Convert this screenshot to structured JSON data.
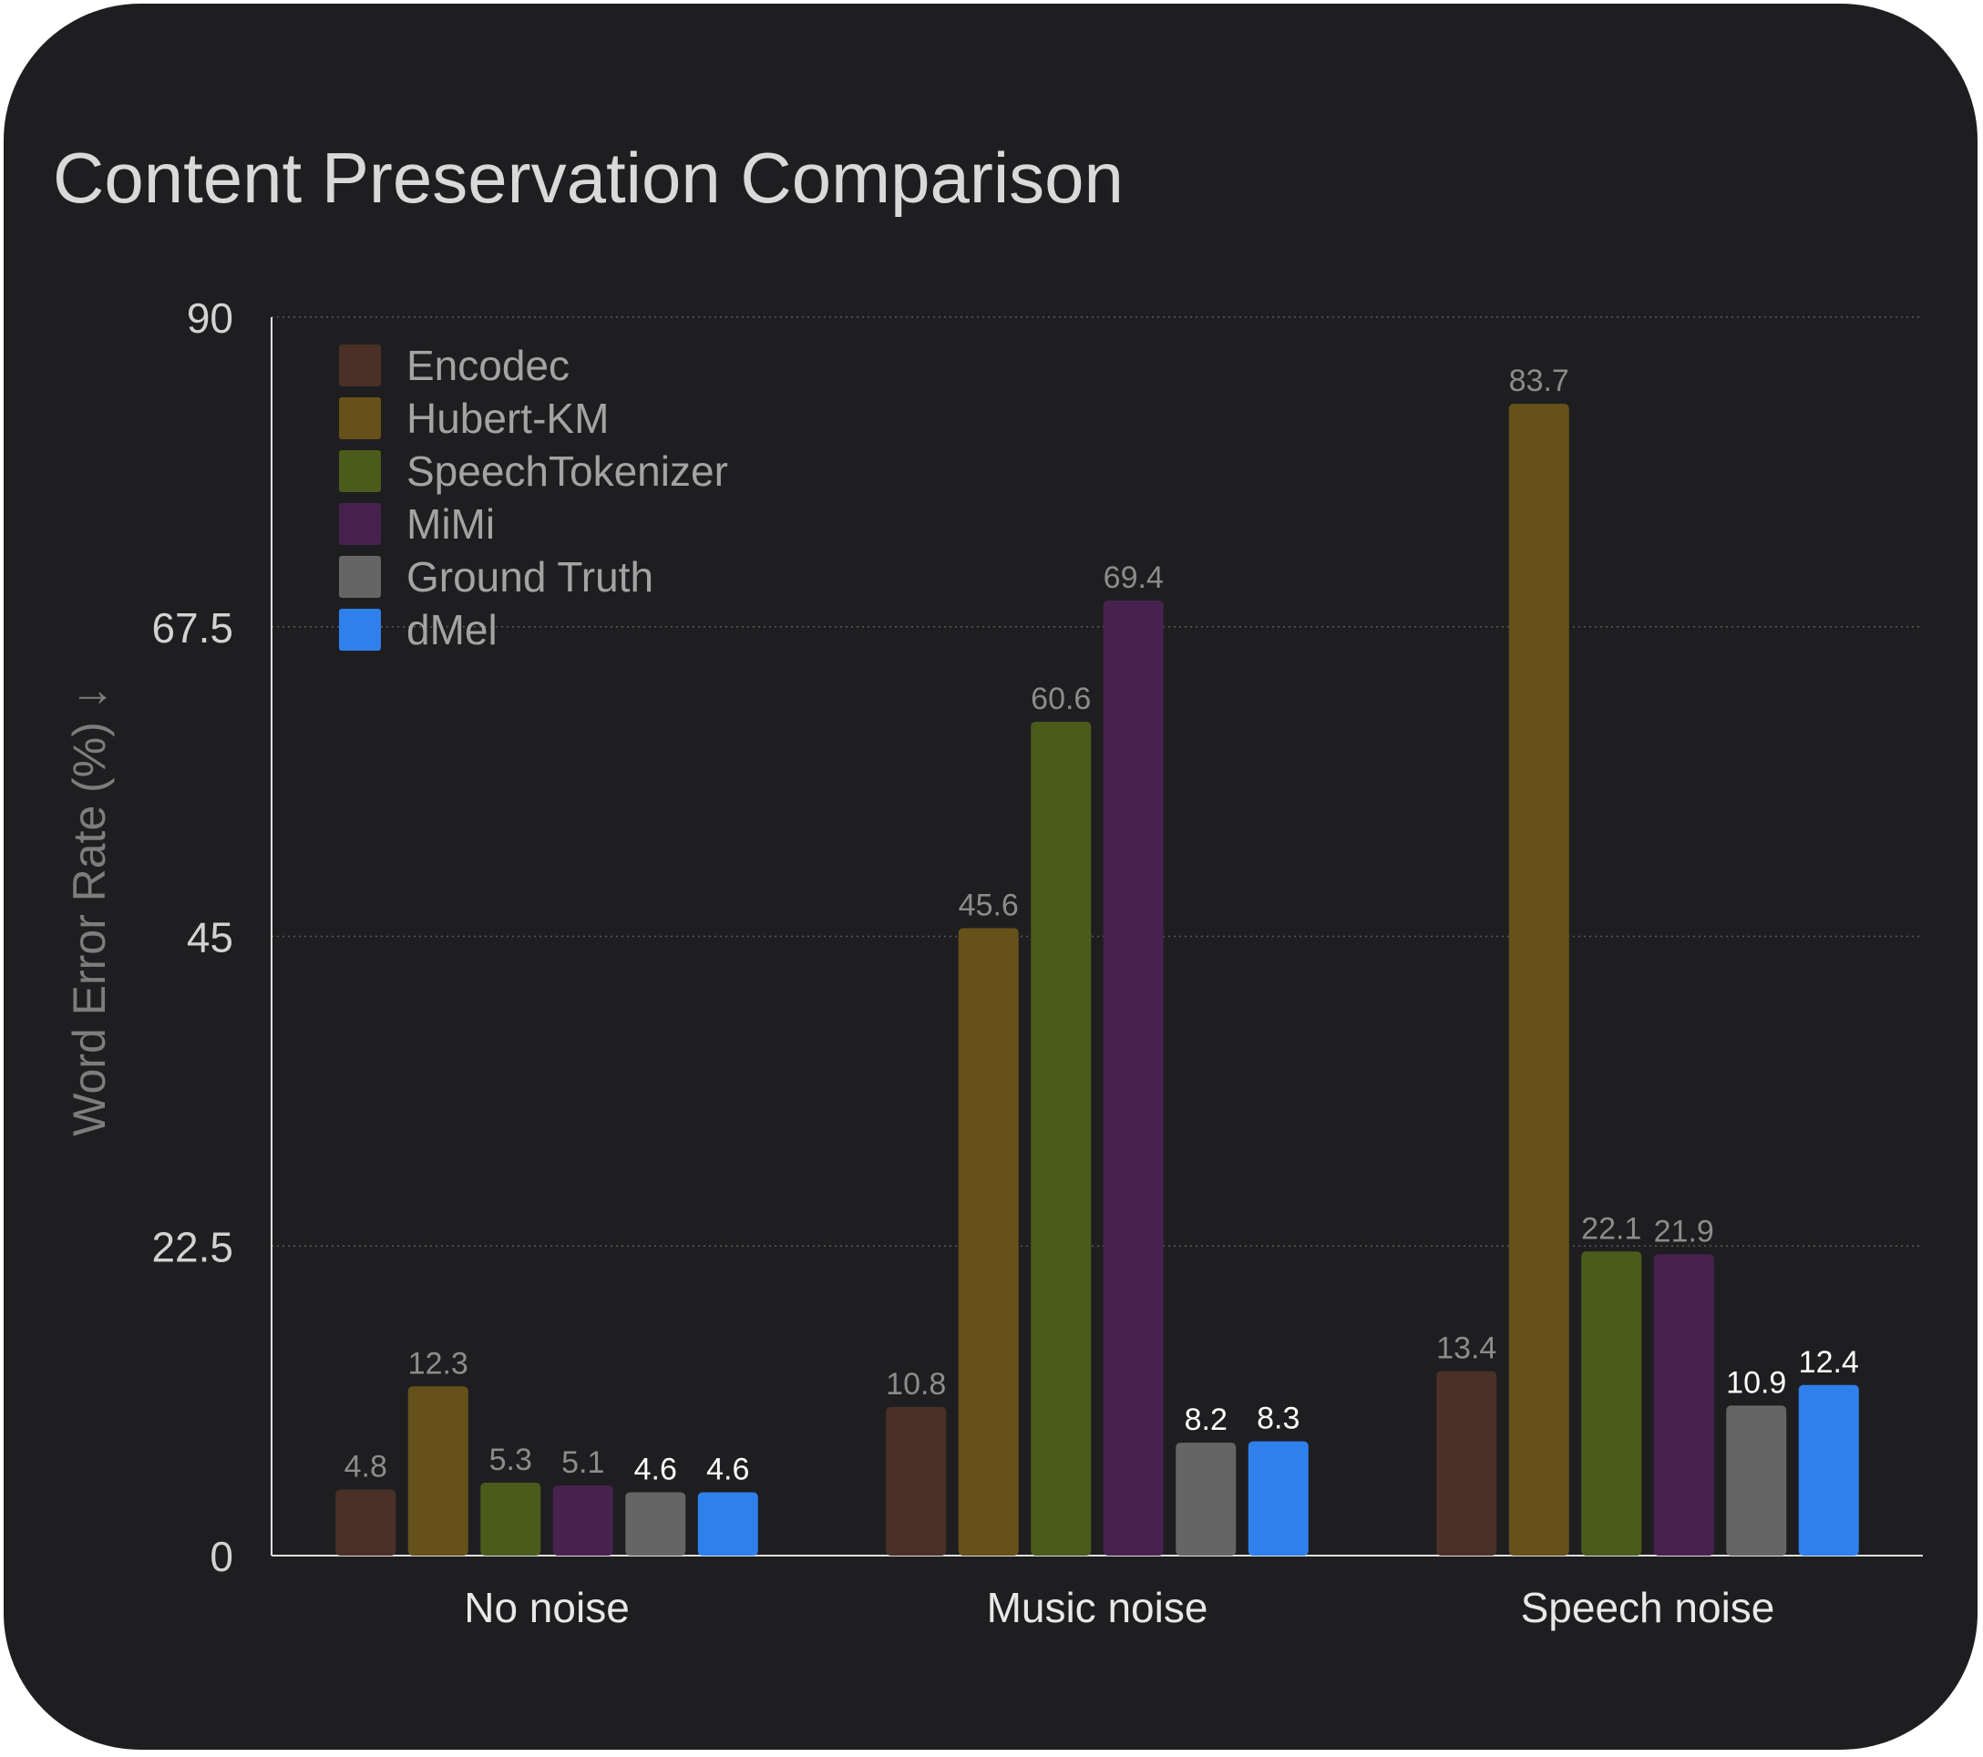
{
  "chart_data": {
    "type": "bar",
    "title": "Content Preservation Comparison",
    "ylabel": "Word Error Rate (%) ↓",
    "xlabel": "",
    "ylim": [
      0,
      90
    ],
    "yticks": [
      "0",
      "22.5",
      "45",
      "67.5",
      "90"
    ],
    "grid": true,
    "legend_position": "top-left",
    "categories": [
      "No noise",
      "Music noise",
      "Speech noise"
    ],
    "series": [
      {
        "name": "Encodec",
        "color": "#4a3027",
        "values": [
          4.8,
          10.8,
          13.4
        ],
        "value_labels": [
          "4.8",
          "10.8",
          "13.4"
        ],
        "label_color": "#8c8c8c"
      },
      {
        "name": "Hubert-KM",
        "color": "#66511b",
        "values": [
          12.3,
          45.6,
          83.7
        ],
        "value_labels": [
          "12.3",
          "45.6",
          "83.7"
        ],
        "label_color": "#8c8c8c"
      },
      {
        "name": "SpeechTokenizer",
        "color": "#4b5b1b",
        "values": [
          5.3,
          60.6,
          22.1
        ],
        "value_labels": [
          "5.3",
          "60.6",
          "22.1"
        ],
        "label_color": "#8c8c8c"
      },
      {
        "name": "MiMi",
        "color": "#47224f",
        "values": [
          5.1,
          69.4,
          21.9
        ],
        "value_labels": [
          "5.1",
          "69.4",
          "21.9"
        ],
        "label_color": "#8c8c8c"
      },
      {
        "name": "Ground Truth",
        "color": "#656565",
        "values": [
          4.6,
          8.2,
          10.9
        ],
        "value_labels": [
          "4.6",
          "8.2",
          "10.9"
        ],
        "label_color": "#ffffff"
      },
      {
        "name": "dMel",
        "color": "#2f80ed",
        "values": [
          4.6,
          8.3,
          12.4
        ],
        "value_labels": [
          "4.6",
          "8.3",
          "12.4"
        ],
        "label_color": "#ffffff"
      }
    ]
  }
}
